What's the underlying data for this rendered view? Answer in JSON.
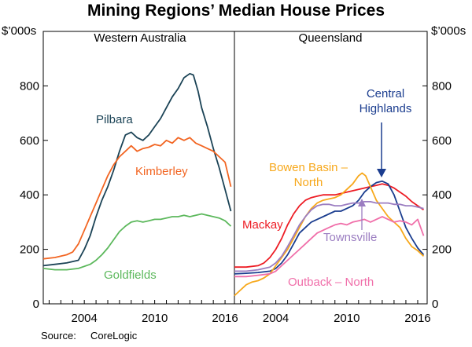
{
  "chart_data": {
    "type": "line",
    "title": "Mining Regions’ Median House Prices",
    "y_unit_left": "$’000s",
    "y_unit_right": "$’000s",
    "ylim": [
      0,
      1000
    ],
    "y_ticks": [
      "0",
      "200",
      "400",
      "600",
      "800"
    ],
    "xlim": [
      2000.5,
      2016.8
    ],
    "x_ticks": [
      "2004",
      "2010",
      "2016"
    ],
    "source_label": "Source:",
    "source_value": "CoreLogic",
    "panels": [
      {
        "title": "Western Australia",
        "series": [
          {
            "name": "Pilbara",
            "color": "#1b4356",
            "x": [
              2000.5,
              2001.5,
              2002.5,
              2003.5,
              2004.0,
              2004.5,
              2005.0,
              2005.5,
              2006.0,
              2006.5,
              2007.0,
              2007.5,
              2008.0,
              2008.5,
              2009.0,
              2009.5,
              2010.0,
              2010.5,
              2011.0,
              2011.5,
              2012.0,
              2012.5,
              2013.0,
              2013.3,
              2013.7,
              2014.0,
              2014.5,
              2015.0,
              2015.5,
              2016.0,
              2016.5
            ],
            "values": [
              140,
              145,
              150,
              160,
              200,
              250,
              320,
              380,
              430,
              490,
              560,
              620,
              630,
              610,
              600,
              620,
              650,
              680,
              720,
              760,
              790,
              830,
              845,
              840,
              780,
              720,
              650,
              570,
              500,
              420,
              340
            ]
          },
          {
            "name": "Kimberley",
            "color": "#f26522",
            "x": [
              2000.5,
              2001.5,
              2002.5,
              2003.0,
              2003.5,
              2004.0,
              2004.5,
              2005.0,
              2005.5,
              2006.0,
              2006.5,
              2007.0,
              2007.5,
              2008.0,
              2008.5,
              2009.0,
              2009.5,
              2010.0,
              2010.5,
              2011.0,
              2011.5,
              2012.0,
              2012.5,
              2013.0,
              2013.5,
              2014.0,
              2014.5,
              2015.0,
              2015.5,
              2016.0,
              2016.5
            ],
            "values": [
              165,
              170,
              180,
              190,
              220,
              270,
              320,
              370,
              420,
              470,
              510,
              540,
              560,
              580,
              560,
              570,
              575,
              585,
              580,
              600,
              590,
              610,
              600,
              610,
              590,
              580,
              570,
              560,
              540,
              520,
              430
            ]
          },
          {
            "name": "Goldfields",
            "color": "#5cb85c",
            "x": [
              2000.5,
              2001.5,
              2002.5,
              2003.5,
              2004.5,
              2005.0,
              2005.5,
              2006.0,
              2006.5,
              2007.0,
              2007.5,
              2008.0,
              2008.5,
              2009.0,
              2009.5,
              2010.0,
              2010.5,
              2011.0,
              2011.5,
              2012.0,
              2012.5,
              2013.0,
              2013.5,
              2014.0,
              2014.5,
              2015.0,
              2015.5,
              2016.0,
              2016.5
            ],
            "values": [
              130,
              125,
              125,
              130,
              145,
              160,
              180,
              205,
              235,
              265,
              285,
              300,
              305,
              300,
              305,
              310,
              310,
              315,
              320,
              320,
              325,
              320,
              325,
              330,
              325,
              320,
              315,
              305,
              285
            ]
          }
        ]
      },
      {
        "title": "Queensland",
        "series": [
          {
            "name": "Mackay",
            "color": "#ed1c24",
            "x": [
              2000.5,
              2001.5,
              2002.5,
              2003.0,
              2003.5,
              2004.0,
              2004.5,
              2005.0,
              2005.5,
              2006.0,
              2006.5,
              2007.0,
              2007.5,
              2008.0,
              2008.5,
              2009.0,
              2009.5,
              2010.0,
              2010.5,
              2011.0,
              2011.5,
              2012.0,
              2012.5,
              2013.0,
              2013.5,
              2014.0,
              2014.5,
              2015.0,
              2015.5,
              2016.0,
              2016.5
            ],
            "values": [
              135,
              135,
              140,
              150,
              170,
              200,
              240,
              290,
              330,
              360,
              380,
              390,
              395,
              400,
              400,
              400,
              405,
              410,
              415,
              420,
              425,
              430,
              435,
              440,
              435,
              425,
              410,
              395,
              375,
              360,
              345
            ]
          },
          {
            "name": "Central Highlands",
            "color": "#1b3d8f",
            "x": [
              2000.5,
              2001.5,
              2002.5,
              2003.5,
              2004.0,
              2004.5,
              2005.0,
              2005.5,
              2006.0,
              2006.5,
              2007.0,
              2007.5,
              2008.0,
              2008.5,
              2009.0,
              2009.5,
              2010.0,
              2010.5,
              2011.0,
              2011.5,
              2012.0,
              2012.5,
              2013.0,
              2013.5,
              2014.0,
              2014.5,
              2015.0,
              2015.5,
              2016.0,
              2016.5
            ],
            "values": [
              110,
              112,
              115,
              120,
              130,
              150,
              180,
              220,
              260,
              280,
              300,
              310,
              320,
              330,
              340,
              340,
              350,
              360,
              380,
              410,
              430,
              445,
              450,
              440,
              400,
              340,
              280,
              240,
              205,
              180
            ]
          },
          {
            "name": "Bowen Basin – North",
            "color": "#f7a81b",
            "x": [
              2000.5,
              2001.0,
              2001.5,
              2002.0,
              2002.5,
              2003.0,
              2003.5,
              2004.0,
              2004.5,
              2005.0,
              2005.5,
              2006.0,
              2006.5,
              2007.0,
              2007.5,
              2008.0,
              2008.5,
              2009.0,
              2009.5,
              2010.0,
              2010.5,
              2011.0,
              2011.3,
              2011.6,
              2012.0,
              2012.5,
              2013.0,
              2013.5,
              2014.0,
              2014.5,
              2015.0,
              2015.5,
              2016.0,
              2016.5
            ],
            "values": [
              30,
              50,
              70,
              80,
              85,
              95,
              110,
              140,
              170,
              200,
              240,
              280,
              320,
              350,
              370,
              380,
              385,
              390,
              400,
              420,
              440,
              470,
              480,
              470,
              430,
              380,
              350,
              320,
              300,
              280,
              240,
              210,
              195,
              175
            ]
          },
          {
            "name": "Townsville",
            "color": "#9b7dc1",
            "x": [
              2000.5,
              2001.5,
              2002.5,
              2003.5,
              2004.0,
              2004.5,
              2005.0,
              2005.5,
              2006.0,
              2006.5,
              2007.0,
              2007.5,
              2008.0,
              2008.5,
              2009.0,
              2009.5,
              2010.0,
              2010.5,
              2011.0,
              2011.5,
              2012.0,
              2012.5,
              2013.0,
              2013.5,
              2014.0,
              2014.5,
              2015.0,
              2015.5,
              2016.0,
              2016.5
            ],
            "values": [
              120,
              120,
              125,
              135,
              150,
              175,
              210,
              250,
              290,
              320,
              345,
              360,
              365,
              365,
              360,
              360,
              365,
              370,
              370,
              375,
              375,
              370,
              370,
              370,
              365,
              365,
              360,
              360,
              355,
              350
            ]
          },
          {
            "name": "Outback – North",
            "color": "#f06ea9",
            "x": [
              2000.5,
              2001.5,
              2002.5,
              2003.5,
              2004.0,
              2004.5,
              2005.0,
              2005.5,
              2006.0,
              2006.5,
              2007.0,
              2007.5,
              2008.0,
              2008.5,
              2009.0,
              2009.5,
              2010.0,
              2010.5,
              2011.0,
              2011.5,
              2012.0,
              2012.5,
              2013.0,
              2013.5,
              2014.0,
              2014.5,
              2015.0,
              2015.5,
              2016.0,
              2016.5
            ],
            "values": [
              100,
              100,
              105,
              110,
              120,
              140,
              160,
              180,
              200,
              220,
              240,
              260,
              270,
              280,
              290,
              295,
              290,
              300,
              305,
              310,
              300,
              310,
              320,
              310,
              300,
              305,
              300,
              290,
              310,
              250
            ]
          }
        ]
      }
    ]
  }
}
